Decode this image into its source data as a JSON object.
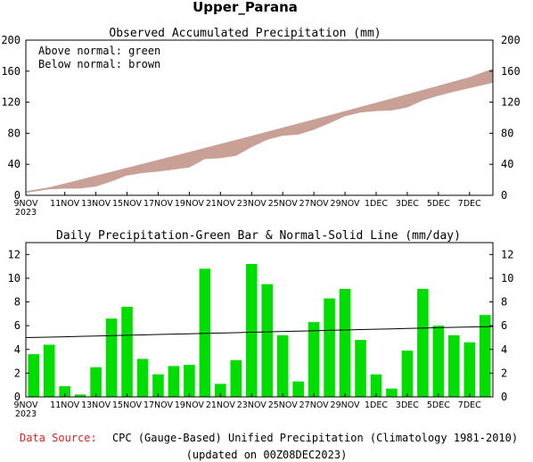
{
  "title": "Upper_Parana",
  "top_panel": {
    "subtitle": "Observed Accumulated Precipitation (mm)",
    "legend_line1": "Above normal: green",
    "legend_line2": "Below normal: brown",
    "colors": {
      "above": "#00dd00",
      "below": "#c9a095"
    },
    "yticks": [
      0,
      40,
      80,
      120,
      160,
      200
    ]
  },
  "bottom_panel": {
    "subtitle": "Daily Precipitation-Green Bar & Normal-Solid Line (mm/day)",
    "colors": {
      "bar": "#00dd00",
      "normal": "#000000"
    },
    "yticks": [
      0,
      2,
      4,
      6,
      8,
      10,
      12
    ]
  },
  "xticks": [
    "9NOV",
    "11NOV",
    "13NOV",
    "15NOV",
    "17NOV",
    "19NOV",
    "21NOV",
    "23NOV",
    "25NOV",
    "27NOV",
    "29NOV",
    "1DEC",
    "3DEC",
    "5DEC",
    "7DEC"
  ],
  "year_label": "2023",
  "footer": {
    "source_label": "Data Source:",
    "source_text": "CPC (Gauge-Based) Unified Precipitation (Climatology 1981-2010)",
    "updated": "(updated on 00Z08DEC2023)",
    "source_label_color": "#dd2222"
  },
  "chart_data": [
    {
      "type": "area",
      "title": "Observed Accumulated Precipitation (mm)",
      "x": [
        "9NOV",
        "10NOV",
        "11NOV",
        "12NOV",
        "13NOV",
        "14NOV",
        "15NOV",
        "16NOV",
        "17NOV",
        "18NOV",
        "19NOV",
        "20NOV",
        "21NOV",
        "22NOV",
        "23NOV",
        "24NOV",
        "25NOV",
        "26NOV",
        "27NOV",
        "28NOV",
        "29NOV",
        "30NOV",
        "1DEC",
        "2DEC",
        "3DEC",
        "4DEC",
        "5DEC",
        "6DEC",
        "7DEC",
        "8DEC"
      ],
      "series": [
        {
          "name": "Observed",
          "values": [
            3.6,
            8.0,
            8.9,
            9.1,
            11.6,
            18.2,
            25.8,
            29.0,
            30.9,
            33.5,
            36.2,
            47.0,
            48.1,
            51.2,
            62.4,
            71.9,
            77.1,
            78.5,
            84.8,
            93.1,
            102.2,
            107.0,
            108.9,
            109.6,
            113.5,
            122.6,
            128.6,
            133.8,
            138.4,
            145.3
          ]
        },
        {
          "name": "Normal",
          "values": [
            5.0,
            10.0,
            15.0,
            20.0,
            25.1,
            30.1,
            35.2,
            40.3,
            45.4,
            50.5,
            55.6,
            60.8,
            66.0,
            71.2,
            76.4,
            81.7,
            87.0,
            92.3,
            97.6,
            102.9,
            108.3,
            113.7,
            119.1,
            124.5,
            130.0,
            135.5,
            141.0,
            146.5,
            152.0,
            163.0
          ]
        }
      ],
      "ylim": [
        0,
        200
      ],
      "legend": [
        "Above normal: green",
        "Below normal: brown"
      ]
    },
    {
      "type": "bar",
      "title": "Daily Precipitation-Green Bar & Normal-Solid Line (mm/day)",
      "x": [
        "9NOV",
        "10NOV",
        "11NOV",
        "12NOV",
        "13NOV",
        "14NOV",
        "15NOV",
        "16NOV",
        "17NOV",
        "18NOV",
        "19NOV",
        "20NOV",
        "21NOV",
        "22NOV",
        "23NOV",
        "24NOV",
        "25NOV",
        "26NOV",
        "27NOV",
        "28NOV",
        "29NOV",
        "30NOV",
        "1DEC",
        "2DEC",
        "3DEC",
        "4DEC",
        "5DEC",
        "6DEC",
        "7DEC",
        "8DEC"
      ],
      "series": [
        {
          "name": "Daily",
          "values": [
            3.6,
            4.4,
            0.9,
            0.2,
            2.5,
            6.6,
            7.6,
            3.2,
            1.9,
            2.6,
            2.7,
            10.8,
            1.1,
            3.1,
            11.2,
            9.5,
            5.2,
            1.3,
            6.3,
            8.3,
            9.1,
            4.8,
            1.9,
            0.7,
            3.9,
            9.1,
            6.0,
            5.2,
            4.6,
            6.9
          ]
        },
        {
          "name": "Normal",
          "values": [
            5.0,
            5.03,
            5.06,
            5.1,
            5.13,
            5.16,
            5.19,
            5.22,
            5.26,
            5.29,
            5.32,
            5.35,
            5.38,
            5.41,
            5.45,
            5.48,
            5.51,
            5.54,
            5.57,
            5.61,
            5.64,
            5.67,
            5.7,
            5.73,
            5.77,
            5.8,
            5.83,
            5.86,
            5.89,
            5.93
          ]
        }
      ],
      "ylim": [
        0,
        13
      ]
    }
  ]
}
